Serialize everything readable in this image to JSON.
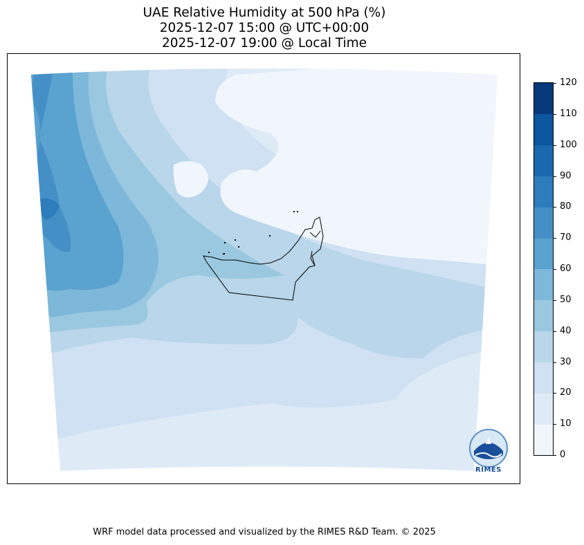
{
  "title": {
    "line1": "UAE Relative Humidity at 500 hPa (%)",
    "line2": "2025-12-07 15:00 @ UTC+00:00",
    "line3": "2025-12-07 19:00 @ Local Time"
  },
  "colorbar": {
    "ticks": [
      "0",
      "10",
      "20",
      "30",
      "40",
      "50",
      "60",
      "70",
      "80",
      "90",
      "100",
      "110",
      "120"
    ],
    "colors": [
      "#f0f6fc",
      "#deebf7",
      "#cfe1f2",
      "#b9d6ea",
      "#9ac8e0",
      "#7db8da",
      "#5aa2cf",
      "#4490c6",
      "#2d7cbb",
      "#1a68ae",
      "#0c559f",
      "#08397a"
    ]
  },
  "logo": {
    "text": "RIMES"
  },
  "footer": "WRF model data processed and visualized by the RIMES R&D Team. © 2025"
}
